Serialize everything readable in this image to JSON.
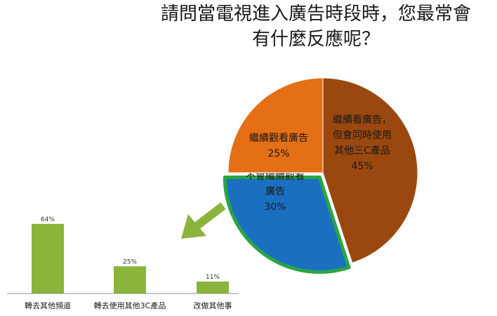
{
  "title_lines": [
    "請問當電視進入廣告時段時，您最常會",
    "有什麼反應呢？"
  ],
  "chart_data": [
    {
      "type": "pie",
      "slices": [
        {
          "label_lines": [
            "繼續看廣告，",
            "但會同時使用",
            "其他三C產品"
          ],
          "value": 45,
          "value_label": "45%",
          "color": "#9a480f"
        },
        {
          "label_lines": [
            "不會繼續觀看",
            "廣告"
          ],
          "value": 30,
          "value_label": "30%",
          "color": "#1b6fc0",
          "highlight_color": "#29a545"
        },
        {
          "label_lines": [
            "繼續觀看廣告"
          ],
          "value": 25,
          "value_label": "25%",
          "color": "#e56f14"
        }
      ]
    },
    {
      "type": "bar",
      "categories": [
        "轉去其他頻道",
        "轉去使用其他3C產品",
        "改做其他事"
      ],
      "values": [
        64,
        25,
        11
      ],
      "value_labels": [
        "64%",
        "25%",
        "11%"
      ],
      "color": "#8ab43b",
      "ylim": [
        0,
        100
      ]
    }
  ],
  "arrow_color": "#8ab43b"
}
